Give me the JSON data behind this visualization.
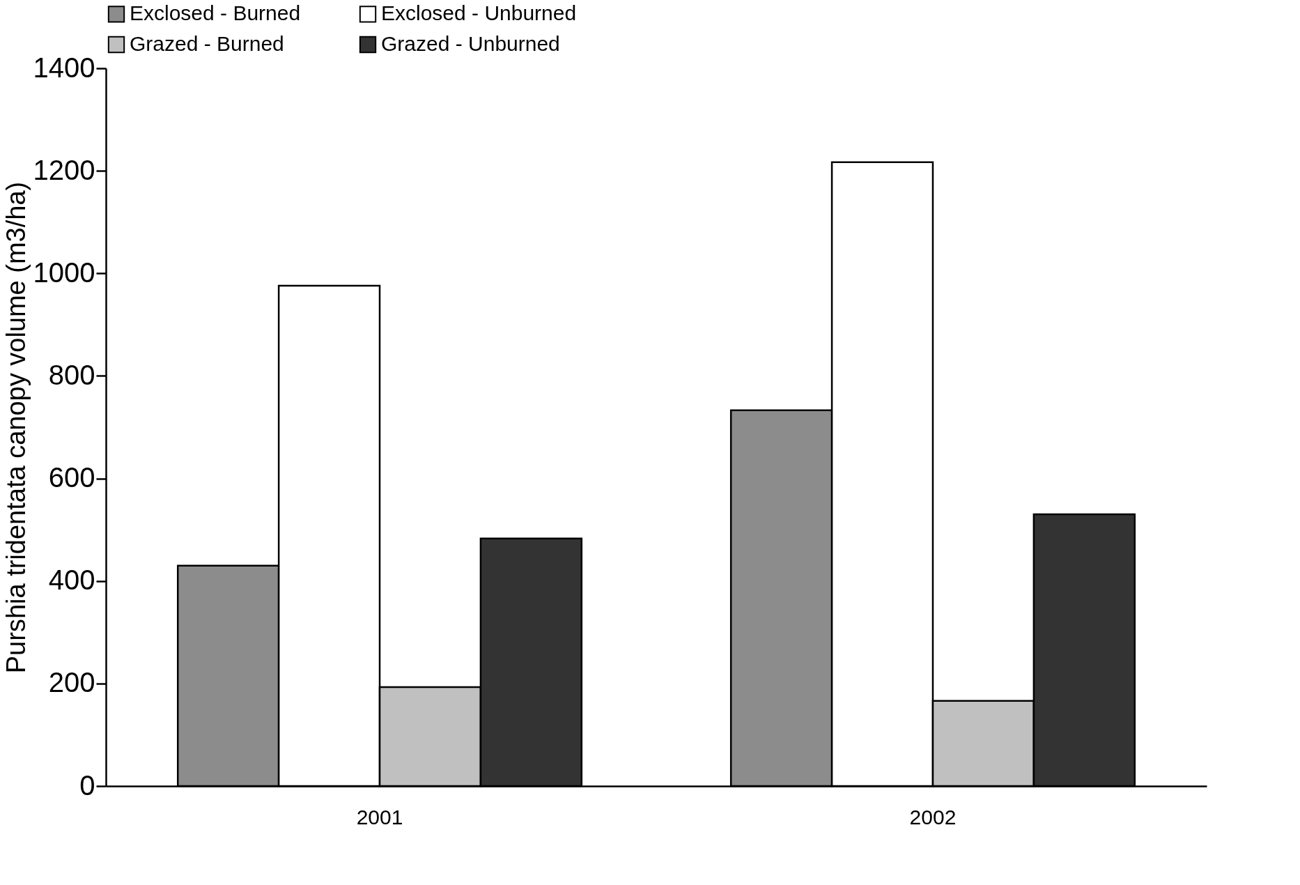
{
  "chart_data": {
    "type": "bar",
    "ylabel": "Purshia tridentata canopy volume (m3/ha)",
    "categories": [
      "2001",
      "2002"
    ],
    "series": [
      {
        "name": "Exclosed - Burned",
        "color": "#8c8c8c",
        "values": [
          430,
          733
        ]
      },
      {
        "name": "Exclosed - Unburned",
        "color": "#ffffff",
        "values": [
          976,
          1217
        ]
      },
      {
        "name": "Grazed - Burned",
        "color": "#c0c0c0",
        "values": [
          193,
          166
        ]
      },
      {
        "name": "Grazed - Unburned",
        "color": "#333333",
        "values": [
          483,
          530
        ]
      }
    ],
    "ylim": [
      0,
      1400
    ],
    "yticks": [
      0,
      200,
      400,
      600,
      800,
      1000,
      1200,
      1400
    ],
    "grid": false,
    "legend": "top"
  }
}
